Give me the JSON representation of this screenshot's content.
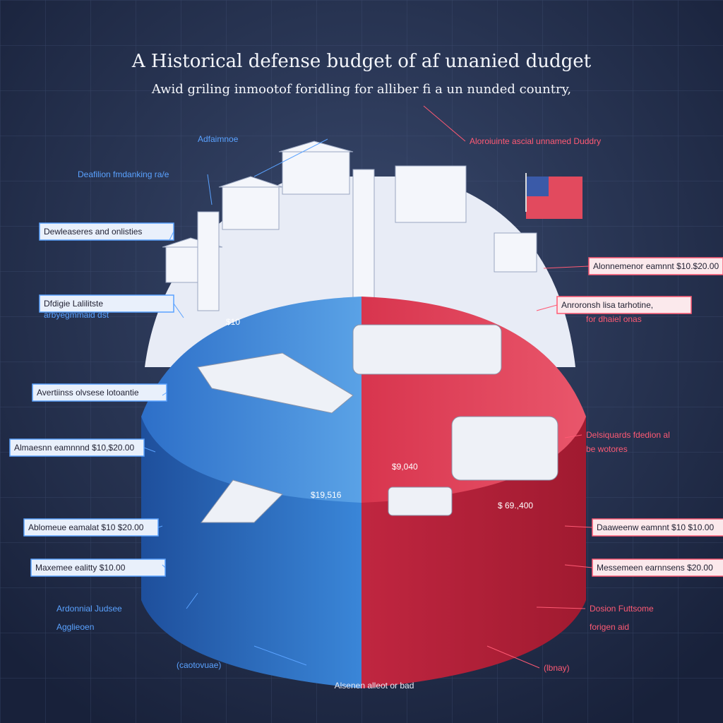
{
  "header": {
    "title": "A Historical defense budget of af unanied dudget",
    "subtitle": "Awid griling inmootof foridling for alliber fi a un nunded country,"
  },
  "left_labels": [
    "Adfaimnoe",
    "Deafilion fmdanking ra/e",
    "Dewleaseres and onlisties",
    "Dfdigie Lalilitste",
    "arbyegmmaid dst",
    "Avertiinss olvsese lotoantie",
    "Almaesnn eamnnnd $10,$20.00",
    "Ablomeue eamalat $10 $20.00",
    "Maxemee ealitty $10.00",
    "Ardonnial Judsee",
    "Agglieoen",
    "(caotovuae)"
  ],
  "right_labels": [
    "Aloroiuinte ascial unnamed Duddry",
    "Alonnemenor eamnnt $10.$20.00",
    "Anroronsh lisa tarhotine,",
    "for dhaiel onas",
    "Delsiquards fdedion al",
    "be wotores",
    "Daaweenw eamnnt $10 $10.00",
    "Messemeen earnnsens $20.00",
    "Dosion Futtsome",
    "forigen aid",
    "(lbnay)"
  ],
  "pie_labels": [
    "$10",
    "$19,516",
    "$9,040",
    "$ 69.,400"
  ],
  "footer": "Alsenen alleot or bad"
}
